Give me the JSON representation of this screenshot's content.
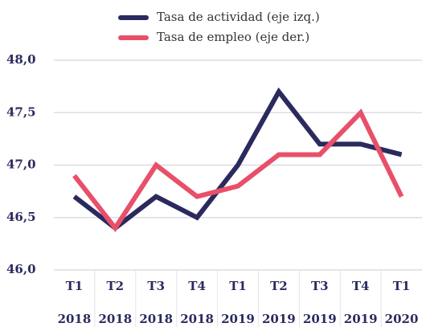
{
  "chart_data": {
    "type": "line",
    "categories": [
      [
        "T1",
        "2018"
      ],
      [
        "T2",
        "2018"
      ],
      [
        "T3",
        "2018"
      ],
      [
        "T4",
        "2018"
      ],
      [
        "T1",
        "2019"
      ],
      [
        "T2",
        "2019"
      ],
      [
        "T3",
        "2019"
      ],
      [
        "T4",
        "2019"
      ],
      [
        "T1",
        "2020"
      ]
    ],
    "series": [
      {
        "name": "Tasa de actividad (eje izq.)",
        "color": "#2b2a5e",
        "values": [
          46.7,
          46.4,
          46.7,
          46.5,
          47.0,
          47.7,
          47.2,
          47.2,
          47.1
        ]
      },
      {
        "name": "Tasa de empleo (eje der.)",
        "color": "#e8506a",
        "values": [
          46.9,
          46.4,
          47.0,
          46.7,
          46.8,
          47.1,
          47.1,
          47.5,
          46.7
        ]
      }
    ],
    "ylim": [
      46.0,
      48.0
    ],
    "yticks": [
      {
        "value": 46.0,
        "label": "46,0"
      },
      {
        "value": 46.5,
        "label": "46,5"
      },
      {
        "value": 47.0,
        "label": "47,0"
      },
      {
        "value": 47.5,
        "label": "47,5"
      },
      {
        "value": 48.0,
        "label": "48,0"
      }
    ],
    "grid": true
  }
}
